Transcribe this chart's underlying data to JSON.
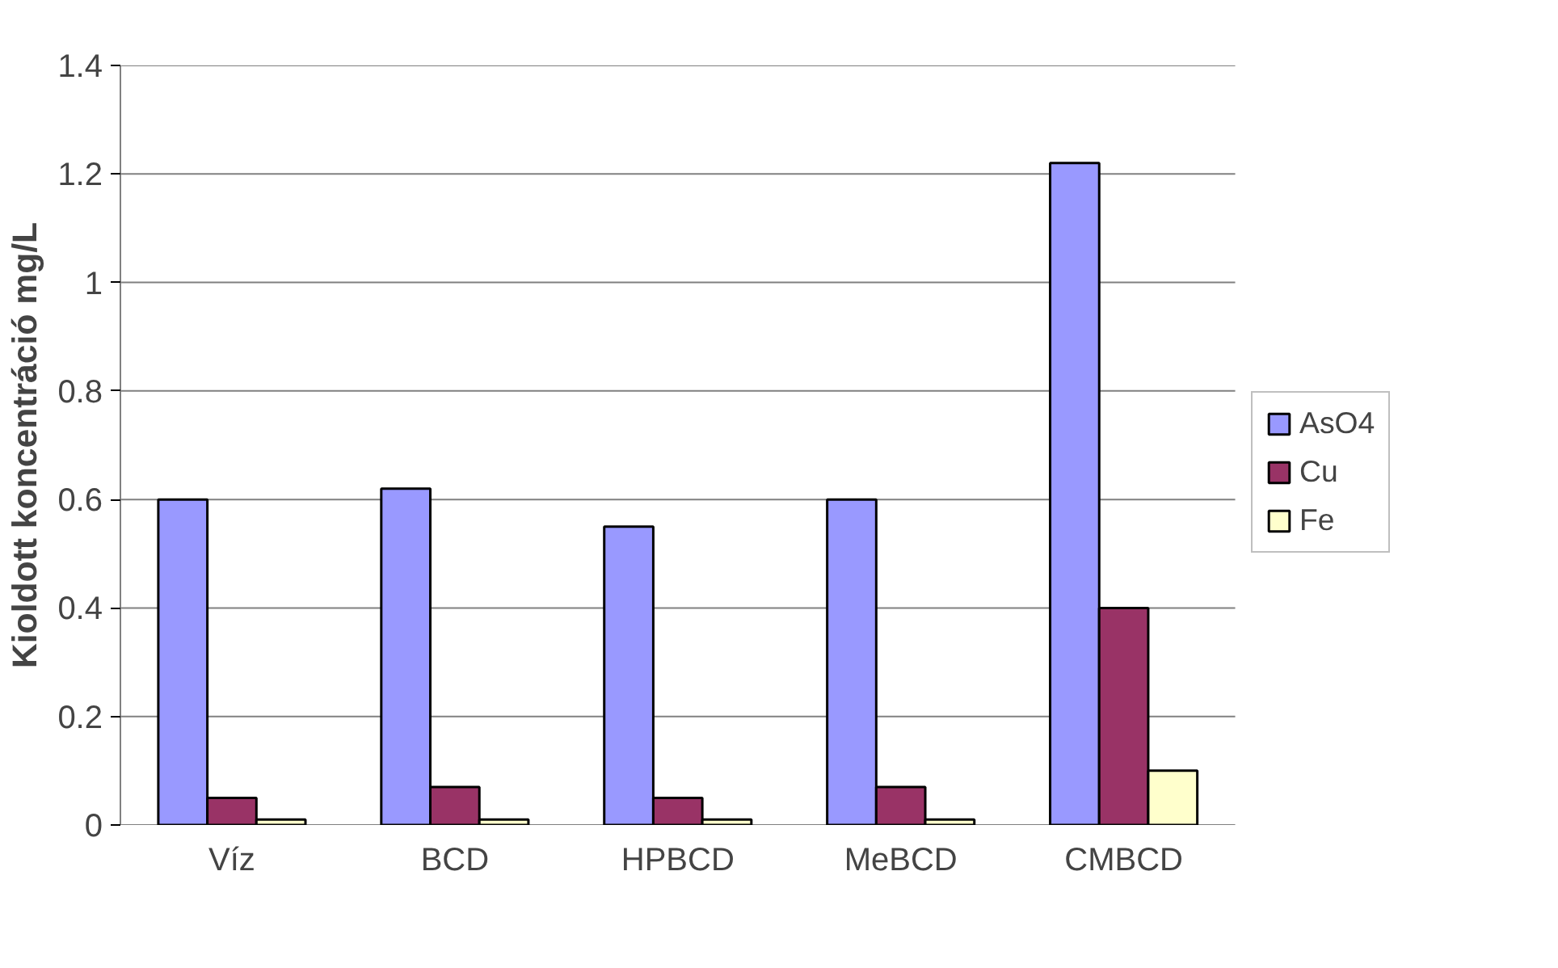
{
  "chart_data": {
    "type": "bar",
    "ylabel": "Kioldott koncentráció mg/L",
    "categories": [
      "Víz",
      "BCD",
      "HPBCD",
      "MeBCD",
      "CMBCD"
    ],
    "series": [
      {
        "name": "AsO4",
        "color": "#9999ff",
        "values": [
          0.6,
          0.62,
          0.55,
          0.6,
          1.22
        ]
      },
      {
        "name": "Cu",
        "color": "#993366",
        "values": [
          0.05,
          0.07,
          0.05,
          0.07,
          0.4
        ]
      },
      {
        "name": "Fe",
        "color": "#ffffcc",
        "values": [
          0.01,
          0.01,
          0.01,
          0.01,
          0.1
        ]
      }
    ],
    "ylim": [
      0,
      1.4
    ],
    "yticks": [
      0,
      0.2,
      0.4,
      0.6,
      0.8,
      1,
      1.2,
      1.4
    ],
    "grid": "y",
    "legend": "right"
  }
}
